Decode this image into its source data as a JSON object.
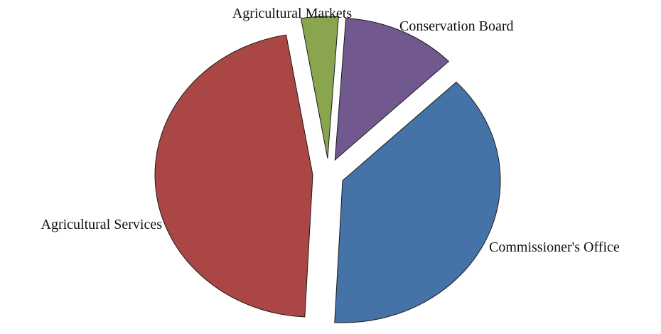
{
  "chart_data": {
    "type": "pie",
    "title": "",
    "exploded": true,
    "legend": "none",
    "slices": [
      {
        "label": "Commissioner's Office",
        "value": 38.0,
        "color": "#4573a7"
      },
      {
        "label": "Agricultural Services",
        "value": 46.5,
        "color": "#aa4744"
      },
      {
        "label": "Agricultural Markets",
        "value": 3.8,
        "color": "#89a54e"
      },
      {
        "label": "Conservation Board",
        "value": 11.7,
        "color": "#71588f"
      }
    ]
  }
}
